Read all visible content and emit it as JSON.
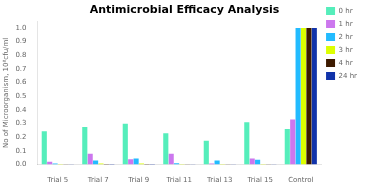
{
  "chart_data": {
    "type": "bar",
    "title": "Antimicrobial Efficacy Analysis",
    "ylabel": "No of Microorganism, 10⁸cfu/ml",
    "categories": [
      "Trial 5",
      "Trial 7",
      "Trial 9",
      "Trial 11",
      "Trial 13",
      "Trial 15",
      "Control"
    ],
    "series": [
      {
        "name": "0 hr",
        "color": "#55eebb",
        "values": [
          0.245,
          0.275,
          0.3,
          0.23,
          0.175,
          0.31,
          0.26
        ]
      },
      {
        "name": "1 hr",
        "color": "#cc77ee",
        "values": [
          0.02,
          0.08,
          0.04,
          0.08,
          0.008,
          0.045,
          0.33
        ]
      },
      {
        "name": "2 hr",
        "color": "#22bbff",
        "values": [
          0.008,
          0.03,
          0.045,
          0.01,
          0.03,
          0.035,
          1.0
        ]
      },
      {
        "name": "3 hr",
        "color": "#ddff00",
        "values": [
          0.005,
          0.008,
          0.008,
          0.005,
          0.005,
          0.005,
          1.0
        ]
      },
      {
        "name": "4 hr",
        "color": "#3d1a00",
        "values": [
          0.003,
          0.005,
          0.005,
          0.003,
          0.003,
          0.003,
          1.0
        ]
      },
      {
        "name": "24 hr",
        "color": "#1133aa",
        "values": [
          0.003,
          0.005,
          0.005,
          0.003,
          0.003,
          0.003,
          1.0
        ]
      }
    ],
    "ylim": [
      0,
      1.05
    ],
    "yticks": [
      {
        "value": 0,
        "label": "0.0"
      },
      0.1,
      0.2,
      0.3,
      0.4,
      0.5,
      0.6,
      0.7,
      0.8,
      0.9,
      {
        "value": 1,
        "label": "1.0"
      }
    ],
    "grid": false,
    "legend": "right"
  }
}
